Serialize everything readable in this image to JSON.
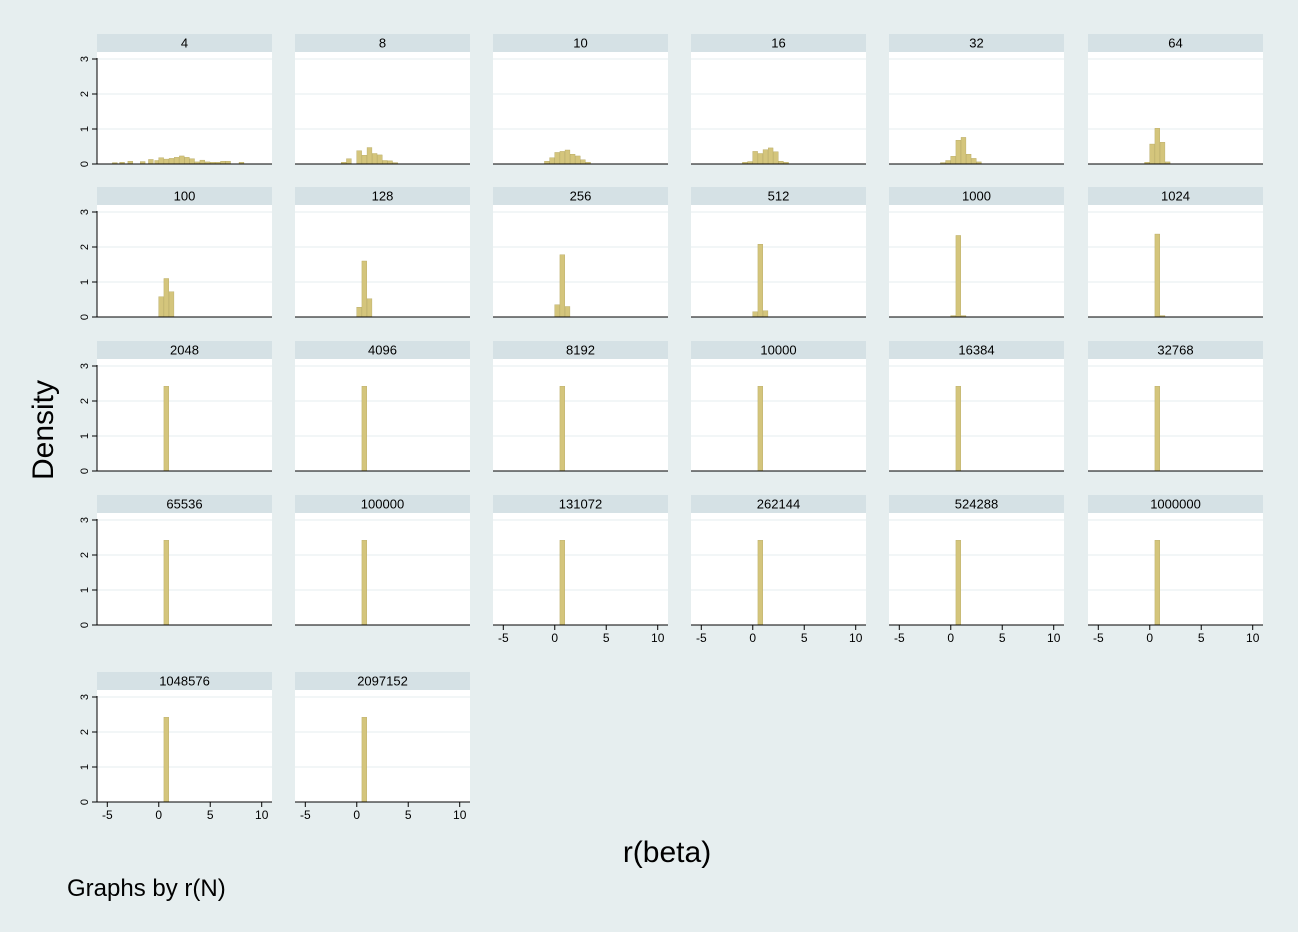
{
  "chart_data": {
    "type": "histogram",
    "xlabel": "r(beta)",
    "ylabel": "Density",
    "note": "Graphs by r(N)",
    "bar_color": "#d4c57c",
    "bar_stroke": "#b3a55e",
    "header_color": "#d5e1e5",
    "grid_color": "#e4ecef",
    "xlim": [
      -6,
      11
    ],
    "ylim": [
      0,
      3.2
    ],
    "x_ticks": [
      -5,
      0,
      5,
      10
    ],
    "y_ticks": [
      0,
      1,
      2,
      3
    ],
    "bin_width": 0.5,
    "panels": [
      {
        "label": "4",
        "bins": [
          [
            -4.5,
            0.04
          ],
          [
            -3.8,
            0.05
          ],
          [
            -3.0,
            0.08
          ],
          [
            -1.8,
            0.07
          ],
          [
            -1.0,
            0.13
          ],
          [
            -0.4,
            0.1
          ],
          [
            0.0,
            0.18
          ],
          [
            0.5,
            0.14
          ],
          [
            1.0,
            0.16
          ],
          [
            1.5,
            0.19
          ],
          [
            2.0,
            0.23
          ],
          [
            2.5,
            0.19
          ],
          [
            3.0,
            0.15
          ],
          [
            3.5,
            0.06
          ],
          [
            4.0,
            0.11
          ],
          [
            4.5,
            0.06
          ],
          [
            5.0,
            0.05
          ],
          [
            5.5,
            0.05
          ],
          [
            6.0,
            0.08
          ],
          [
            6.5,
            0.08
          ],
          [
            7.8,
            0.05
          ]
        ]
      },
      {
        "label": "8",
        "bins": [
          [
            -1.5,
            0.05
          ],
          [
            -1.0,
            0.15
          ],
          [
            0.0,
            0.38
          ],
          [
            0.5,
            0.25
          ],
          [
            1.0,
            0.47
          ],
          [
            1.5,
            0.3
          ],
          [
            2.0,
            0.26
          ],
          [
            2.5,
            0.1
          ],
          [
            3.0,
            0.09
          ],
          [
            3.5,
            0.04
          ]
        ]
      },
      {
        "label": "10",
        "bins": [
          [
            -1.0,
            0.08
          ],
          [
            -0.5,
            0.18
          ],
          [
            0.0,
            0.33
          ],
          [
            0.5,
            0.36
          ],
          [
            1.0,
            0.4
          ],
          [
            1.5,
            0.28
          ],
          [
            2.0,
            0.23
          ],
          [
            2.5,
            0.12
          ],
          [
            3.0,
            0.05
          ]
        ]
      },
      {
        "label": "16",
        "bins": [
          [
            -1.0,
            0.05
          ],
          [
            -0.5,
            0.07
          ],
          [
            0.0,
            0.36
          ],
          [
            0.5,
            0.3
          ],
          [
            1.0,
            0.41
          ],
          [
            1.5,
            0.46
          ],
          [
            2.0,
            0.35
          ],
          [
            2.5,
            0.08
          ],
          [
            3.0,
            0.05
          ]
        ]
      },
      {
        "label": "32",
        "bins": [
          [
            -1.0,
            0.04
          ],
          [
            -0.5,
            0.1
          ],
          [
            0.0,
            0.22
          ],
          [
            0.5,
            0.68
          ],
          [
            1.0,
            0.76
          ],
          [
            1.5,
            0.28
          ],
          [
            2.0,
            0.16
          ],
          [
            2.5,
            0.06
          ]
        ]
      },
      {
        "label": "64",
        "bins": [
          [
            -0.5,
            0.05
          ],
          [
            0.0,
            0.57
          ],
          [
            0.5,
            1.02
          ],
          [
            1.0,
            0.62
          ],
          [
            1.5,
            0.06
          ]
        ]
      },
      {
        "label": "100",
        "bins": [
          [
            0.0,
            0.58
          ],
          [
            0.5,
            1.1
          ],
          [
            1.0,
            0.72
          ]
        ]
      },
      {
        "label": "128",
        "bins": [
          [
            0.0,
            0.28
          ],
          [
            0.5,
            1.6
          ],
          [
            1.0,
            0.52
          ]
        ]
      },
      {
        "label": "256",
        "bins": [
          [
            0.0,
            0.35
          ],
          [
            0.5,
            1.78
          ],
          [
            1.0,
            0.3
          ]
        ]
      },
      {
        "label": "512",
        "bins": [
          [
            0.0,
            0.15
          ],
          [
            0.5,
            2.08
          ],
          [
            1.0,
            0.18
          ]
        ]
      },
      {
        "label": "1000",
        "bins": [
          [
            0.0,
            0.04
          ],
          [
            0.5,
            2.33
          ],
          [
            1.0,
            0.04
          ]
        ]
      },
      {
        "label": "1024",
        "bins": [
          [
            0.5,
            2.37
          ],
          [
            1.0,
            0.04
          ]
        ]
      },
      {
        "label": "2048",
        "bins": [
          [
            0.5,
            2.42
          ]
        ]
      },
      {
        "label": "4096",
        "bins": [
          [
            0.5,
            2.42
          ]
        ]
      },
      {
        "label": "8192",
        "bins": [
          [
            0.5,
            2.42
          ]
        ]
      },
      {
        "label": "10000",
        "bins": [
          [
            0.5,
            2.42
          ]
        ]
      },
      {
        "label": "16384",
        "bins": [
          [
            0.5,
            2.42
          ]
        ]
      },
      {
        "label": "32768",
        "bins": [
          [
            0.5,
            2.42
          ]
        ]
      },
      {
        "label": "65536",
        "bins": [
          [
            0.5,
            2.42
          ]
        ]
      },
      {
        "label": "100000",
        "bins": [
          [
            0.5,
            2.42
          ]
        ]
      },
      {
        "label": "131072",
        "bins": [
          [
            0.5,
            2.42
          ]
        ]
      },
      {
        "label": "262144",
        "bins": [
          [
            0.5,
            2.42
          ]
        ]
      },
      {
        "label": "524288",
        "bins": [
          [
            0.5,
            2.42
          ]
        ]
      },
      {
        "label": "1000000",
        "bins": [
          [
            0.5,
            2.42
          ]
        ]
      },
      {
        "label": "1048576",
        "bins": [
          [
            0.5,
            2.42
          ]
        ]
      },
      {
        "label": "2097152",
        "bins": [
          [
            0.5,
            2.42
          ]
        ]
      }
    ]
  }
}
